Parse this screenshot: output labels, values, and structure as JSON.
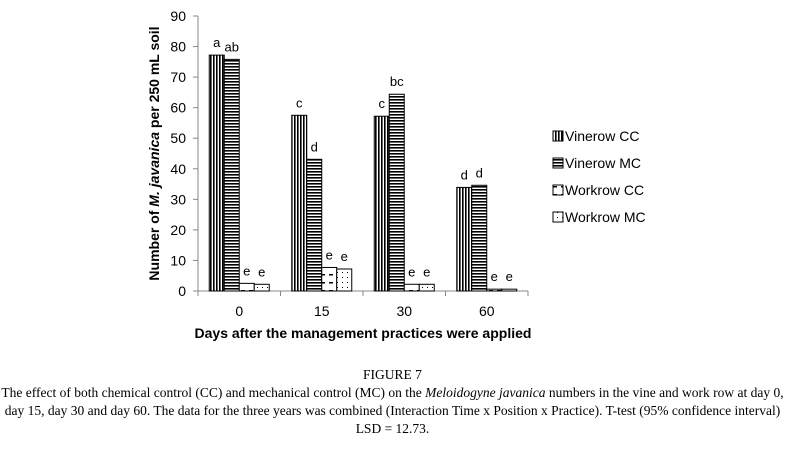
{
  "chart_data": {
    "type": "bar",
    "title": "",
    "xlabel": "Days after the management practices were applied",
    "ylabel_parts": [
      "Number of ",
      "M. javanica",
      " per 250 mL soil"
    ],
    "ylim": [
      0,
      90
    ],
    "yticks": [
      0,
      10,
      20,
      30,
      40,
      50,
      60,
      70,
      80,
      90
    ],
    "categories": [
      "0",
      "15",
      "30",
      "60"
    ],
    "legend_position": "right",
    "series": [
      {
        "name": "Vinerow CC",
        "pattern": "vertical-stripes",
        "values": [
          77.2,
          57.5,
          57.2,
          33.9
        ],
        "labels": [
          "a",
          "c",
          "c",
          "d"
        ]
      },
      {
        "name": "Vinerow MC",
        "pattern": "horizontal-stripes",
        "values": [
          75.8,
          43.1,
          64.4,
          34.6
        ],
        "labels": [
          "ab",
          "d",
          "bc",
          "d"
        ]
      },
      {
        "name": "Workrow CC",
        "pattern": "dashes",
        "values": [
          2.5,
          7.7,
          2.2,
          0.6
        ],
        "labels": [
          "e",
          "e",
          "e",
          "e"
        ]
      },
      {
        "name": "Workrow MC",
        "pattern": "dots",
        "values": [
          2.2,
          7.2,
          2.2,
          0.6
        ],
        "labels": [
          "e",
          "e",
          "e",
          "e"
        ]
      }
    ]
  },
  "caption": {
    "figure_label": "FIGURE 7",
    "text_before": "The effect of both chemical control (CC) and mechanical control (MC)  on the ",
    "species": "Meloidogyne javanica",
    "text_after": " numbers in the vine and work row at day 0, day 15, day 30 and day 60. The data for the three years was combined (Interaction Time x Position x Practice). T-test (95% confidence interval) LSD = 12.73."
  }
}
